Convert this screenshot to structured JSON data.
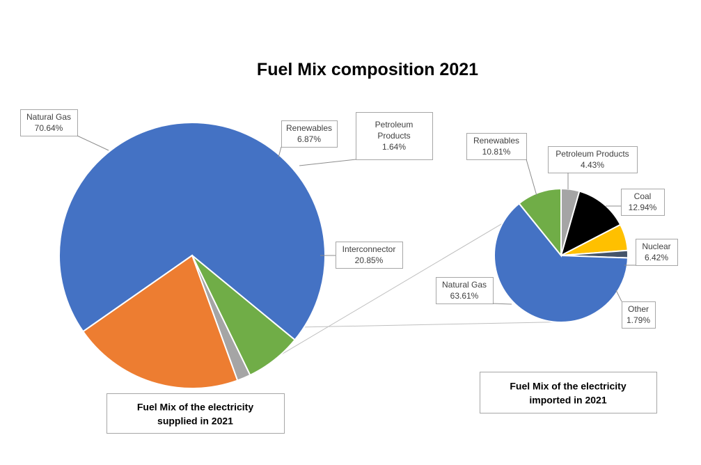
{
  "chart_data": {
    "type": "pie",
    "title": "Fuel Mix composition 2021",
    "charts": [
      {
        "caption": [
          "Fuel Mix of the electricity",
          "supplied in 2021"
        ],
        "slices": [
          {
            "name": "Natural Gas",
            "value": 70.64,
            "value_label": "70.64%",
            "color": "#4472C4",
            "label_lines": [
              "Natural Gas",
              "70.64%"
            ]
          },
          {
            "name": "Renewables",
            "value": 6.87,
            "value_label": "6.87%",
            "color": "#70AD47",
            "label_lines": [
              "Renewables",
              "6.87%"
            ]
          },
          {
            "name": "Petroleum Products",
            "value": 1.64,
            "value_label": "1.64%",
            "color": "#A5A5A5",
            "label_lines": [
              "Petroleum",
              "Products",
              "1.64%"
            ]
          },
          {
            "name": "Interconnector",
            "value": 20.85,
            "value_label": "20.85%",
            "color": "#ED7D31",
            "label_lines": [
              "Interconnector",
              "20.85%"
            ]
          }
        ]
      },
      {
        "caption": [
          "Fuel Mix of the electricity",
          "imported in 2021"
        ],
        "slices": [
          {
            "name": "Petroleum Products",
            "value": 4.43,
            "value_label": "4.43%",
            "color": "#A5A5A5",
            "label_lines": [
              "Petroleum Products",
              "4.43%"
            ]
          },
          {
            "name": "Coal",
            "value": 12.94,
            "value_label": "12.94%",
            "color": "#000000",
            "label_lines": [
              "Coal",
              "12.94%"
            ]
          },
          {
            "name": "Nuclear",
            "value": 6.42,
            "value_label": "6.42%",
            "color": "#FFC000",
            "label_lines": [
              "Nuclear",
              "6.42%"
            ]
          },
          {
            "name": "Other",
            "value": 1.79,
            "value_label": "1.79%",
            "color": "#44546A",
            "label_lines": [
              "Other",
              "1.79%"
            ]
          },
          {
            "name": "Natural Gas",
            "value": 63.61,
            "value_label": "63.61%",
            "color": "#4472C4",
            "label_lines": [
              "Natural Gas",
              "63.61%"
            ]
          },
          {
            "name": "Renewables",
            "value": 10.81,
            "value_label": "10.81%",
            "color": "#70AD47",
            "label_lines": [
              "Renewables",
              "10.81%"
            ]
          }
        ]
      }
    ]
  }
}
